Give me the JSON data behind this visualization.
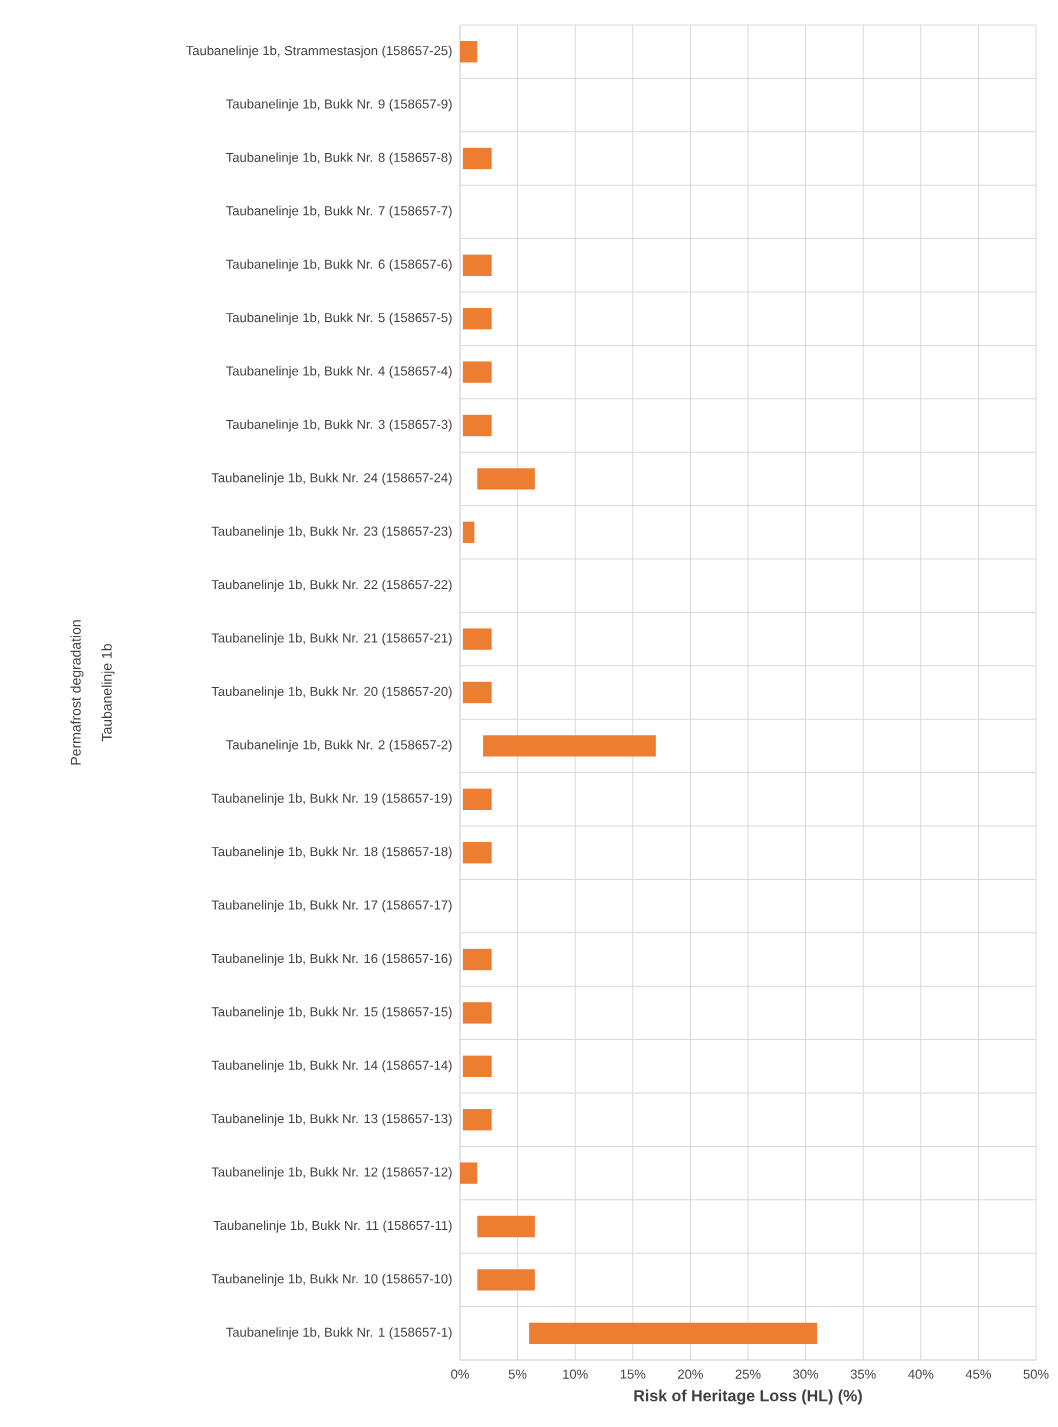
{
  "chart_data": {
    "type": "bar",
    "orientation": "horizontal",
    "xlabel": "Risk of Heritage Loss (HL) (%)",
    "annotations": [
      "Permafrost degradation",
      "Taubanelinje 1b"
    ],
    "categories": [
      "Taubanelinje 1b, Strammestasjon (158657-25)",
      "Taubanelinje 1b, Bukk Nr. 9 (158657-9)",
      "Taubanelinje 1b, Bukk Nr. 8 (158657-8)",
      "Taubanelinje 1b, Bukk Nr. 7 (158657-7)",
      "Taubanelinje 1b, Bukk Nr. 6 (158657-6)",
      "Taubanelinje 1b, Bukk Nr. 5 (158657-5)",
      "Taubanelinje 1b, Bukk Nr. 4 (158657-4)",
      "Taubanelinje 1b, Bukk Nr. 3 (158657-3)",
      "Taubanelinje 1b, Bukk Nr. 24 (158657-24)",
      "Taubanelinje 1b, Bukk Nr. 23 (158657-23)",
      "Taubanelinje 1b, Bukk Nr. 22 (158657-22)",
      "Taubanelinje 1b, Bukk Nr. 21 (158657-21)",
      "Taubanelinje 1b, Bukk Nr. 20 (158657-20)",
      "Taubanelinje 1b, Bukk Nr. 2 (158657-2)",
      "Taubanelinje 1b, Bukk Nr. 19 (158657-19)",
      "Taubanelinje 1b, Bukk Nr. 18 (158657-18)",
      "Taubanelinje 1b, Bukk Nr. 17 (158657-17)",
      "Taubanelinje 1b, Bukk Nr. 16 (158657-16)",
      "Taubanelinje 1b, Bukk Nr. 15 (158657-15)",
      "Taubanelinje 1b, Bukk Nr. 14 (158657-14)",
      "Taubanelinje 1b, Bukk Nr. 13 (158657-13)",
      "Taubanelinje 1b, Bukk Nr. 12 (158657-12)",
      "Taubanelinje 1b, Bukk Nr. 11 (158657-11)",
      "Taubanelinje 1b, Bukk Nr. 10 (158657-10)",
      "Taubanelinje 1b, Bukk Nr. 1 (158657-1)"
    ],
    "base": [
      0,
      null,
      0.25,
      null,
      0.25,
      0.25,
      0.25,
      0.25,
      1.5,
      0.25,
      null,
      0.25,
      0.25,
      2,
      0.25,
      0.25,
      null,
      0.25,
      0.25,
      0.25,
      0.25,
      0,
      1.5,
      1.5,
      6
    ],
    "values": [
      1.5,
      null,
      2.5,
      null,
      2.5,
      2.5,
      2.5,
      2.5,
      5,
      1,
      null,
      2.5,
      2.5,
      15,
      2.5,
      2.5,
      null,
      2.5,
      2.5,
      2.5,
      2.5,
      1.5,
      5,
      5,
      25
    ],
    "color": "#ed7d31",
    "xlim": [
      0,
      50
    ],
    "xticks": [
      {
        "value": 0,
        "label": "0%"
      },
      {
        "value": 5,
        "label": "5%"
      },
      {
        "value": 10,
        "label": "10%"
      },
      {
        "value": 15,
        "label": "15%"
      },
      {
        "value": 20,
        "label": "20%"
      },
      {
        "value": 25,
        "label": "25%"
      },
      {
        "value": 30,
        "label": "30%"
      },
      {
        "value": 35,
        "label": "35%"
      },
      {
        "value": 40,
        "label": "40%"
      },
      {
        "value": 45,
        "label": "45%"
      },
      {
        "value": 50,
        "label": "50%"
      }
    ],
    "grid": true
  }
}
